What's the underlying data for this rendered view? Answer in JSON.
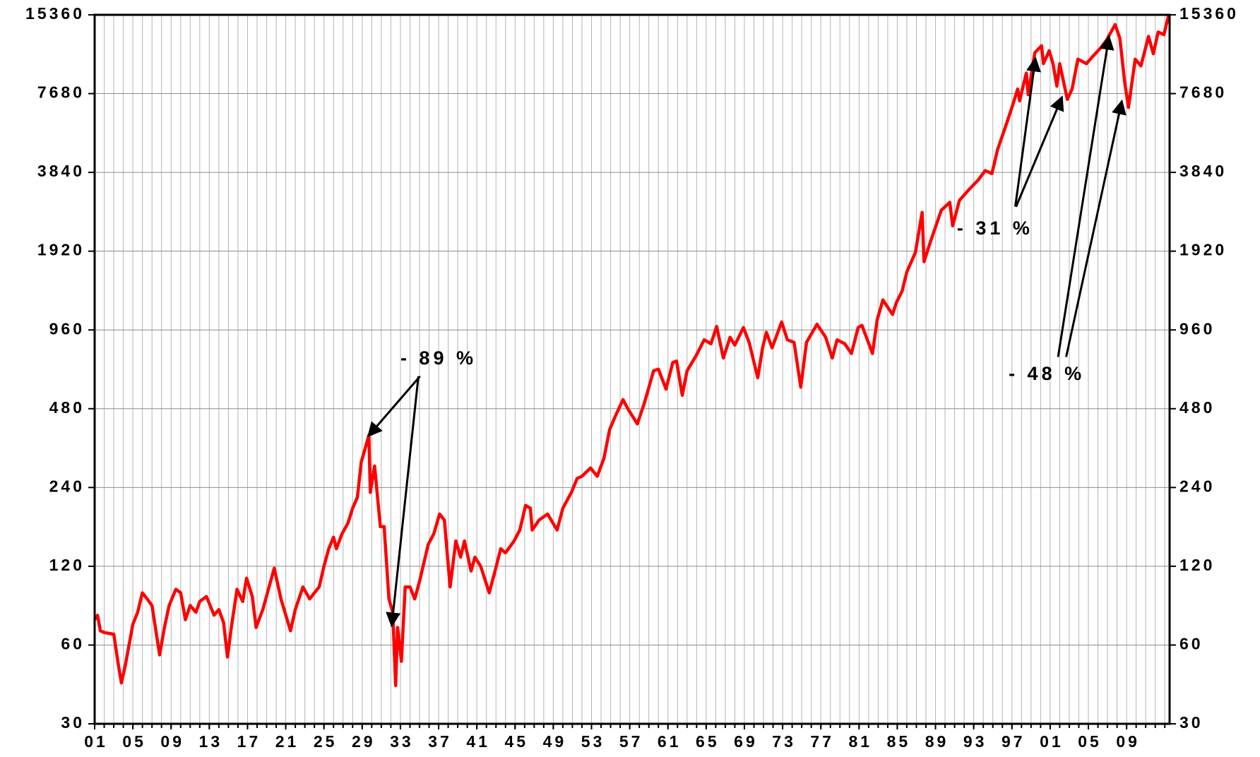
{
  "chart_data": {
    "type": "line",
    "log_scale": 2,
    "grid": true,
    "color": "#ff0000",
    "annotations": [
      "- 89 %",
      "- 31 %",
      "- 48 %"
    ],
    "xlim": [
      1901,
      2013.5
    ],
    "xticks": [
      {
        "value": 1901,
        "label": "01"
      },
      {
        "value": 1905,
        "label": "05"
      },
      {
        "value": 1909,
        "label": "09"
      },
      {
        "value": 1913,
        "label": "13"
      },
      {
        "value": 1917,
        "label": "17"
      },
      {
        "value": 1921,
        "label": "21"
      },
      {
        "value": 1925,
        "label": "25"
      },
      {
        "value": 1929,
        "label": "29"
      },
      {
        "value": 1933,
        "label": "33"
      },
      {
        "value": 1937,
        "label": "37"
      },
      {
        "value": 1941,
        "label": "41"
      },
      {
        "value": 1945,
        "label": "45"
      },
      {
        "value": 1949,
        "label": "49"
      },
      {
        "value": 1953,
        "label": "53"
      },
      {
        "value": 1957,
        "label": "57"
      },
      {
        "value": 1961,
        "label": "61"
      },
      {
        "value": 1965,
        "label": "65"
      },
      {
        "value": 1969,
        "label": "69"
      },
      {
        "value": 1973,
        "label": "73"
      },
      {
        "value": 1977,
        "label": "77"
      },
      {
        "value": 1981,
        "label": "81"
      },
      {
        "value": 1985,
        "label": "85"
      },
      {
        "value": 1989,
        "label": "89"
      },
      {
        "value": 1993,
        "label": "93"
      },
      {
        "value": 1997,
        "label": "97"
      },
      {
        "value": 2001,
        "label": "01"
      },
      {
        "value": 2005,
        "label": "05"
      },
      {
        "value": 2009,
        "label": "09"
      }
    ],
    "x_minor_ticks": [
      1901,
      1902,
      1903,
      1904,
      1905,
      1906,
      1907,
      1908,
      1909,
      1910,
      1911,
      1912,
      1913,
      1914,
      1915,
      1916,
      1917,
      1918,
      1919,
      1920,
      1921,
      1922,
      1923,
      1924,
      1925,
      1926,
      1927,
      1928,
      1929,
      1930,
      1931,
      1932,
      1933,
      1934,
      1935,
      1936,
      1937,
      1938,
      1939,
      1940,
      1941,
      1942,
      1943,
      1944,
      1945,
      1946,
      1947,
      1948,
      1949,
      1950,
      1951,
      1952,
      1953,
      1954,
      1955,
      1956,
      1957,
      1958,
      1959,
      1960,
      1961,
      1962,
      1963,
      1964,
      1965,
      1966,
      1967,
      1968,
      1969,
      1970,
      1971,
      1972,
      1973,
      1974,
      1975,
      1976,
      1977,
      1978,
      1979,
      1980,
      1981,
      1982,
      1983,
      1984,
      1985,
      1986,
      1987,
      1988,
      1989,
      1990,
      1991,
      1992,
      1993,
      1994,
      1995,
      1996,
      1997,
      1998,
      1999,
      2000,
      2001,
      2002,
      2003,
      2004,
      2005,
      2006,
      2007,
      2008,
      2009,
      2010,
      2011,
      2012,
      2013
    ],
    "ylim": [
      30,
      15360
    ],
    "yticks": [
      30,
      60,
      120,
      240,
      480,
      960,
      1920,
      3840,
      7680,
      15360
    ],
    "x": [
      1901.0,
      1901.3,
      1901.6,
      1902,
      1903,
      1903.5,
      1903.8,
      1904.2,
      1904.6,
      1905,
      1905.5,
      1906,
      1906.5,
      1907,
      1907.8,
      1908.3,
      1908.8,
      1909.5,
      1910,
      1910.5,
      1911,
      1911.6,
      1912,
      1912.7,
      1913.5,
      1914,
      1914.5,
      1914.9,
      1915.3,
      1915.9,
      1916.5,
      1916.9,
      1917.5,
      1917.9,
      1918.6,
      1919.8,
      1920.5,
      1921.5,
      1922,
      1922.8,
      1923.5,
      1924,
      1924.5,
      1925,
      1925.5,
      1926,
      1926.3,
      1926.9,
      1927.5,
      1928,
      1928.5,
      1928.9,
      1929.7,
      1929.85,
      1930.3,
      1930.9,
      1931.3,
      1931.8,
      1932.2,
      1932.5,
      1932.7,
      1933.1,
      1933.5,
      1934,
      1934.5,
      1935,
      1935.9,
      1936.5,
      1937.1,
      1937.6,
      1938.2,
      1938.8,
      1939.3,
      1939.7,
      1940.4,
      1940.8,
      1941.4,
      1942.3,
      1942.9,
      1943.5,
      1944,
      1944.9,
      1945.5,
      1946.1,
      1946.6,
      1946.8,
      1947.5,
      1948.4,
      1949.4,
      1950,
      1950.9,
      1951.5,
      1952,
      1952.9,
      1953.6,
      1954.3,
      1954.9,
      1955.5,
      1956.3,
      1956.8,
      1957.8,
      1958.5,
      1959.5,
      1960,
      1960.8,
      1961.5,
      1961.9,
      1962.5,
      1963,
      1963.9,
      1964.8,
      1965.5,
      1966.1,
      1966.8,
      1967.5,
      1968,
      1968.9,
      1969.5,
      1970.4,
      1970.9,
      1971.3,
      1971.9,
      1972.9,
      1973.5,
      1974.2,
      1974.9,
      1975.5,
      1976.6,
      1977.5,
      1978.2,
      1978.7,
      1979.5,
      1980.2,
      1980.9,
      1981.3,
      1982.4,
      1982.9,
      1983.5,
      1984.5,
      1984.9,
      1985.5,
      1986,
      1986.9,
      1987.6,
      1987.8,
      1988.5,
      1989.6,
      1990.5,
      1990.8,
      1991.5,
      1992.5,
      1993.5,
      1994.2,
      1994.9,
      1995.5,
      1996.3,
      1997,
      1997.6,
      1997.8,
      1998.5,
      1998.7,
      1999.4,
      2000.1,
      2000.3,
      2000.9,
      2001.3,
      2001.7,
      2002.0,
      2002.8,
      2003.3,
      2003.9,
      2004.8,
      2005.4,
      2006.3,
      2006.9,
      2007.8,
      2008.3,
      2008.8,
      2009.2,
      2009.9,
      2010.5,
      2011.3,
      2011.8,
      2012.3,
      2012.9,
      2013.4
    ],
    "values": [
      75,
      78,
      68,
      67,
      66,
      50,
      43,
      50,
      60,
      72,
      80,
      95,
      90,
      85,
      55,
      70,
      85,
      98,
      95,
      75,
      85,
      80,
      88,
      92,
      78,
      82,
      73,
      54,
      70,
      98,
      88,
      108,
      92,
      70,
      82,
      118,
      90,
      68,
      82,
      100,
      90,
      95,
      100,
      120,
      140,
      155,
      140,
      160,
      175,
      200,
      220,
      300,
      380,
      230,
      290,
      170,
      170,
      90,
      80,
      42,
      70,
      52,
      100,
      100,
      90,
      105,
      145,
      160,
      190,
      180,
      100,
      150,
      130,
      150,
      115,
      130,
      120,
      95,
      115,
      140,
      135,
      150,
      165,
      205,
      200,
      165,
      180,
      190,
      165,
      200,
      230,
      260,
      265,
      285,
      265,
      310,
      400,
      450,
      520,
      480,
      420,
      500,
      670,
      680,
      570,
      720,
      730,
      540,
      670,
      760,
      880,
      850,
      990,
      750,
      900,
      840,
      980,
      860,
      630,
      820,
      940,
      820,
      1030,
      880,
      860,
      580,
      860,
      1010,
      900,
      750,
      880,
      850,
      780,
      980,
      1000,
      780,
      1050,
      1250,
      1100,
      1220,
      1350,
      1600,
      1900,
      2700,
      1750,
      2100,
      2750,
      2950,
      2400,
      3000,
      3300,
      3600,
      3900,
      3800,
      4700,
      5700,
      6800,
      8000,
      7200,
      9200,
      7600,
      11000,
      11700,
      10000,
      11200,
      10000,
      8200,
      10000,
      7300,
      8000,
      10400,
      10000,
      10600,
      11500,
      12300,
      14100,
      12500,
      8500,
      6800,
      10400,
      9800,
      12700,
      10900,
      13200,
      12900,
      15300
    ]
  }
}
